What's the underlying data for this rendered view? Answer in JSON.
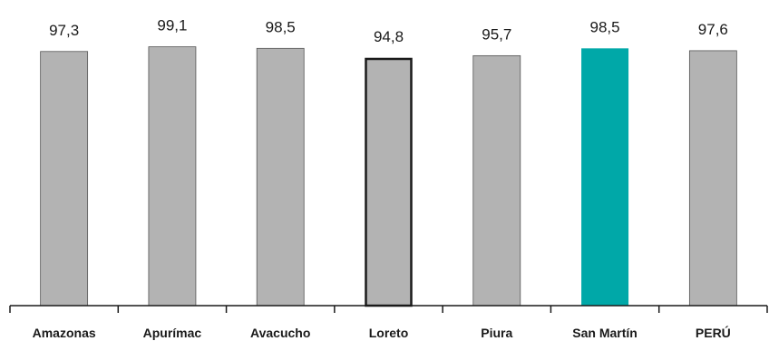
{
  "chart_data": {
    "type": "bar",
    "title": "",
    "xlabel": "",
    "ylabel": "",
    "categories": [
      "Amazonas",
      "Apurímac",
      "Avacucho",
      "Loreto",
      "Piura",
      "San Martín",
      "PERÚ"
    ],
    "values": [
      97.3,
      99.1,
      98.5,
      94.8,
      95.7,
      98.5,
      97.6
    ],
    "value_labels": [
      "97,3",
      "99,1",
      "98,5",
      "94,8",
      "95,7",
      "98,5",
      "97,6"
    ],
    "ylim": [
      0,
      100
    ],
    "grid": false,
    "legend": "none",
    "colors": {
      "default_bar": "#b3b3b3",
      "highlight_bar": "#00a8a8",
      "outlined_bar_border": "#1a1a1a",
      "axis": "#1a1a1a"
    },
    "highlight_index": 5,
    "outlined_index": 3
  }
}
